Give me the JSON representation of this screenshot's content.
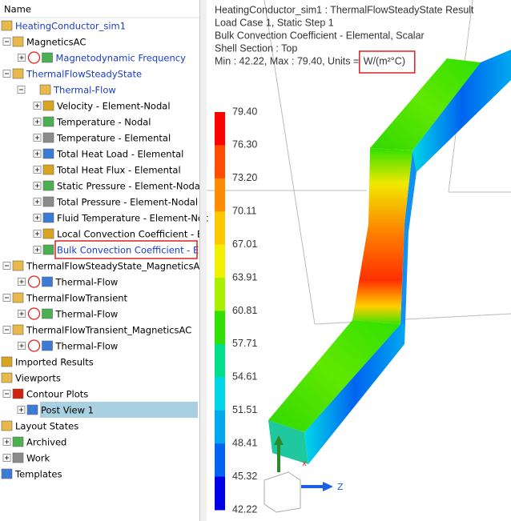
{
  "tree": {
    "header": "Name",
    "nodes": [
      {
        "label": "HeatingConductor_sim1",
        "children": [
          {
            "label": "MagneticsAC",
            "children": [
              {
                "label": "Magnetodynamic Frequency"
              }
            ]
          },
          {
            "label": "ThermalFlowSteadyState",
            "children": [
              {
                "label": "Thermal-Flow",
                "children": [
                  {
                    "label": "Velocity - Element-Nodal"
                  },
                  {
                    "label": "Temperature - Nodal"
                  },
                  {
                    "label": "Temperature - Elemental"
                  },
                  {
                    "label": "Total Heat Load - Elemental"
                  },
                  {
                    "label": "Total Heat Flux - Elemental"
                  },
                  {
                    "label": "Static Pressure - Element-Nodal"
                  },
                  {
                    "label": "Total Pressure - Element-Nodal"
                  },
                  {
                    "label": "Fluid Temperature - Element-Noc"
                  },
                  {
                    "label": "Local Convection Coefficient - El"
                  },
                  {
                    "label": "Bulk Convection Coefficient - Ele"
                  }
                ]
              }
            ]
          },
          {
            "label": "ThermalFlowSteadyState_MagneticsAC",
            "children": [
              {
                "label": "Thermal-Flow"
              }
            ]
          },
          {
            "label": "ThermalFlowTransient",
            "children": [
              {
                "label": "Thermal-Flow"
              }
            ]
          },
          {
            "label": "ThermalFlowTransient_MagneticsAC",
            "children": [
              {
                "label": "Thermal-Flow"
              }
            ]
          }
        ]
      },
      {
        "label": "Imported Results"
      },
      {
        "label": "Viewports",
        "children": [
          {
            "label": "Contour Plots",
            "children": [
              {
                "label": "Post View 1"
              }
            ]
          }
        ]
      },
      {
        "label": "Layout States",
        "children": [
          {
            "label": "Archived"
          },
          {
            "label": "Work"
          }
        ]
      },
      {
        "label": "Templates"
      }
    ]
  },
  "viewport": {
    "info": [
      "HeatingConductor_sim1 : ThermalFlowSteadyState Result",
      "Load Case 1, Static Step 1",
      "Bulk Convection Coefficient - Elemental, Scalar",
      "Shell Section : Top",
      "Min : 42.22, Max : 79.40, Units = "
    ],
    "units": "W/(m²°C)",
    "legend": {
      "labels": [
        "79.40",
        "76.30",
        "73.20",
        "70.11",
        "67.01",
        "63.91",
        "60.81",
        "57.71",
        "54.61",
        "51.51",
        "48.41",
        "45.32",
        "42.22"
      ],
      "colors": [
        "#ff0000",
        "#ff4d00",
        "#ff8c00",
        "#ffc800",
        "#f0f000",
        "#a8f000",
        "#30e000",
        "#00e08c",
        "#00d8e8",
        "#00a8f0",
        "#0064f0",
        "#0000e8"
      ]
    },
    "triad": {
      "z": "Z",
      "x": "x"
    }
  }
}
